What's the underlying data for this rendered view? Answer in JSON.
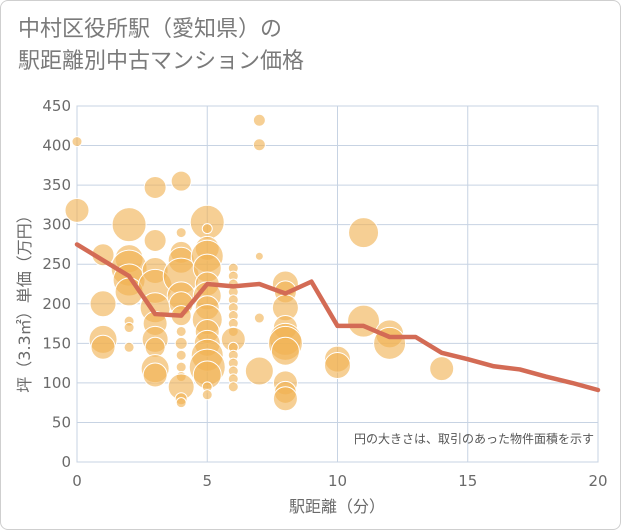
{
  "title_lines": [
    "中村区役所駅（愛知県）の",
    "駅距離別中古マンション価格"
  ],
  "chart_data": {
    "type": "scatter",
    "title": "中村区役所駅（愛知県）の駅距離別中古マンション価格",
    "xlabel": "駅距離（分）",
    "ylabel": "坪（3.3㎡）単価（万円）",
    "xlim": [
      0,
      20
    ],
    "ylim": [
      0,
      450
    ],
    "xticks": [
      0,
      5,
      10,
      15,
      20
    ],
    "yticks": [
      0,
      50,
      100,
      150,
      200,
      250,
      300,
      350,
      400,
      450
    ],
    "grid": true,
    "note": "円の大きさは、取引のあった物件面積を示す",
    "colors": {
      "bubble": "#f0b253",
      "line": "#d36b55"
    },
    "series": [
      {
        "kind": "bubble",
        "points": [
          {
            "x": 0,
            "y": 405,
            "s": 5
          },
          {
            "x": 0,
            "y": 318,
            "s": 12
          },
          {
            "x": 1,
            "y": 262,
            "s": 11
          },
          {
            "x": 1,
            "y": 200,
            "s": 13
          },
          {
            "x": 1,
            "y": 155,
            "s": 14
          },
          {
            "x": 1,
            "y": 145,
            "s": 12
          },
          {
            "x": 2,
            "y": 300,
            "s": 17
          },
          {
            "x": 2,
            "y": 257,
            "s": 14
          },
          {
            "x": 2,
            "y": 245,
            "s": 18
          },
          {
            "x": 2,
            "y": 230,
            "s": 16
          },
          {
            "x": 2,
            "y": 215,
            "s": 14
          },
          {
            "x": 2,
            "y": 178,
            "s": 5
          },
          {
            "x": 2,
            "y": 170,
            "s": 5
          },
          {
            "x": 2,
            "y": 145,
            "s": 5
          },
          {
            "x": 3,
            "y": 347,
            "s": 11
          },
          {
            "x": 3,
            "y": 280,
            "s": 11
          },
          {
            "x": 3,
            "y": 242,
            "s": 13
          },
          {
            "x": 3,
            "y": 222,
            "s": 17
          },
          {
            "x": 3,
            "y": 195,
            "s": 15
          },
          {
            "x": 3,
            "y": 175,
            "s": 12
          },
          {
            "x": 3,
            "y": 155,
            "s": 13
          },
          {
            "x": 3,
            "y": 145,
            "s": 10
          },
          {
            "x": 3,
            "y": 118,
            "s": 14
          },
          {
            "x": 3,
            "y": 110,
            "s": 12
          },
          {
            "x": 4,
            "y": 355,
            "s": 10
          },
          {
            "x": 4,
            "y": 290,
            "s": 5
          },
          {
            "x": 4,
            "y": 265,
            "s": 11
          },
          {
            "x": 4,
            "y": 255,
            "s": 13
          },
          {
            "x": 4,
            "y": 235,
            "s": 18
          },
          {
            "x": 4,
            "y": 210,
            "s": 14
          },
          {
            "x": 4,
            "y": 200,
            "s": 12
          },
          {
            "x": 4,
            "y": 185,
            "s": 10
          },
          {
            "x": 4,
            "y": 165,
            "s": 5
          },
          {
            "x": 4,
            "y": 150,
            "s": 6
          },
          {
            "x": 4,
            "y": 135,
            "s": 5
          },
          {
            "x": 4,
            "y": 120,
            "s": 5
          },
          {
            "x": 4,
            "y": 108,
            "s": 5
          },
          {
            "x": 4,
            "y": 95,
            "s": 13
          },
          {
            "x": 4,
            "y": 80,
            "s": 6
          },
          {
            "x": 4,
            "y": 75,
            "s": 5
          },
          {
            "x": 5,
            "y": 303,
            "s": 17
          },
          {
            "x": 5,
            "y": 295,
            "s": 5
          },
          {
            "x": 5,
            "y": 270,
            "s": 12
          },
          {
            "x": 5,
            "y": 260,
            "s": 16
          },
          {
            "x": 5,
            "y": 245,
            "s": 14
          },
          {
            "x": 5,
            "y": 225,
            "s": 12
          },
          {
            "x": 5,
            "y": 210,
            "s": 14
          },
          {
            "x": 5,
            "y": 195,
            "s": 12
          },
          {
            "x": 5,
            "y": 180,
            "s": 15
          },
          {
            "x": 5,
            "y": 165,
            "s": 12
          },
          {
            "x": 5,
            "y": 150,
            "s": 13
          },
          {
            "x": 5,
            "y": 135,
            "s": 16
          },
          {
            "x": 5,
            "y": 120,
            "s": 18
          },
          {
            "x": 5,
            "y": 110,
            "s": 14
          },
          {
            "x": 5,
            "y": 95,
            "s": 5
          },
          {
            "x": 5,
            "y": 85,
            "s": 5
          },
          {
            "x": 6,
            "y": 245,
            "s": 5
          },
          {
            "x": 6,
            "y": 235,
            "s": 5
          },
          {
            "x": 6,
            "y": 225,
            "s": 5
          },
          {
            "x": 6,
            "y": 215,
            "s": 5
          },
          {
            "x": 6,
            "y": 205,
            "s": 5
          },
          {
            "x": 6,
            "y": 195,
            "s": 5
          },
          {
            "x": 6,
            "y": 185,
            "s": 5
          },
          {
            "x": 6,
            "y": 175,
            "s": 5
          },
          {
            "x": 6,
            "y": 165,
            "s": 5
          },
          {
            "x": 6,
            "y": 155,
            "s": 12
          },
          {
            "x": 6,
            "y": 145,
            "s": 5
          },
          {
            "x": 6,
            "y": 135,
            "s": 5
          },
          {
            "x": 6,
            "y": 125,
            "s": 5
          },
          {
            "x": 6,
            "y": 115,
            "s": 5
          },
          {
            "x": 6,
            "y": 105,
            "s": 5
          },
          {
            "x": 6,
            "y": 95,
            "s": 5
          },
          {
            "x": 7,
            "y": 432,
            "s": 6
          },
          {
            "x": 7,
            "y": 401,
            "s": 6
          },
          {
            "x": 7,
            "y": 260,
            "s": 4
          },
          {
            "x": 7,
            "y": 182,
            "s": 5
          },
          {
            "x": 7,
            "y": 115,
            "s": 14
          },
          {
            "x": 8,
            "y": 225,
            "s": 13
          },
          {
            "x": 8,
            "y": 215,
            "s": 11
          },
          {
            "x": 8,
            "y": 195,
            "s": 13
          },
          {
            "x": 8,
            "y": 170,
            "s": 12
          },
          {
            "x": 8,
            "y": 155,
            "s": 16
          },
          {
            "x": 8,
            "y": 150,
            "s": 17
          },
          {
            "x": 8,
            "y": 140,
            "s": 14
          },
          {
            "x": 8,
            "y": 100,
            "s": 12
          },
          {
            "x": 8,
            "y": 88,
            "s": 11
          },
          {
            "x": 8,
            "y": 80,
            "s": 12
          },
          {
            "x": 10,
            "y": 130,
            "s": 13
          },
          {
            "x": 10,
            "y": 122,
            "s": 13
          },
          {
            "x": 11,
            "y": 290,
            "s": 15
          },
          {
            "x": 11,
            "y": 178,
            "s": 16
          },
          {
            "x": 12,
            "y": 162,
            "s": 14
          },
          {
            "x": 12,
            "y": 150,
            "s": 16
          },
          {
            "x": 14,
            "y": 118,
            "s": 12
          }
        ]
      },
      {
        "kind": "line",
        "x": [
          0,
          1,
          2,
          3,
          4,
          5,
          6,
          7,
          8,
          9,
          10,
          11,
          12,
          13,
          14,
          15,
          16,
          17,
          18,
          19,
          20
        ],
        "y": [
          275,
          255,
          235,
          187,
          185,
          225,
          222,
          225,
          213,
          228,
          172,
          172,
          158,
          158,
          138,
          130,
          121,
          117,
          108,
          100,
          91
        ]
      }
    ]
  }
}
